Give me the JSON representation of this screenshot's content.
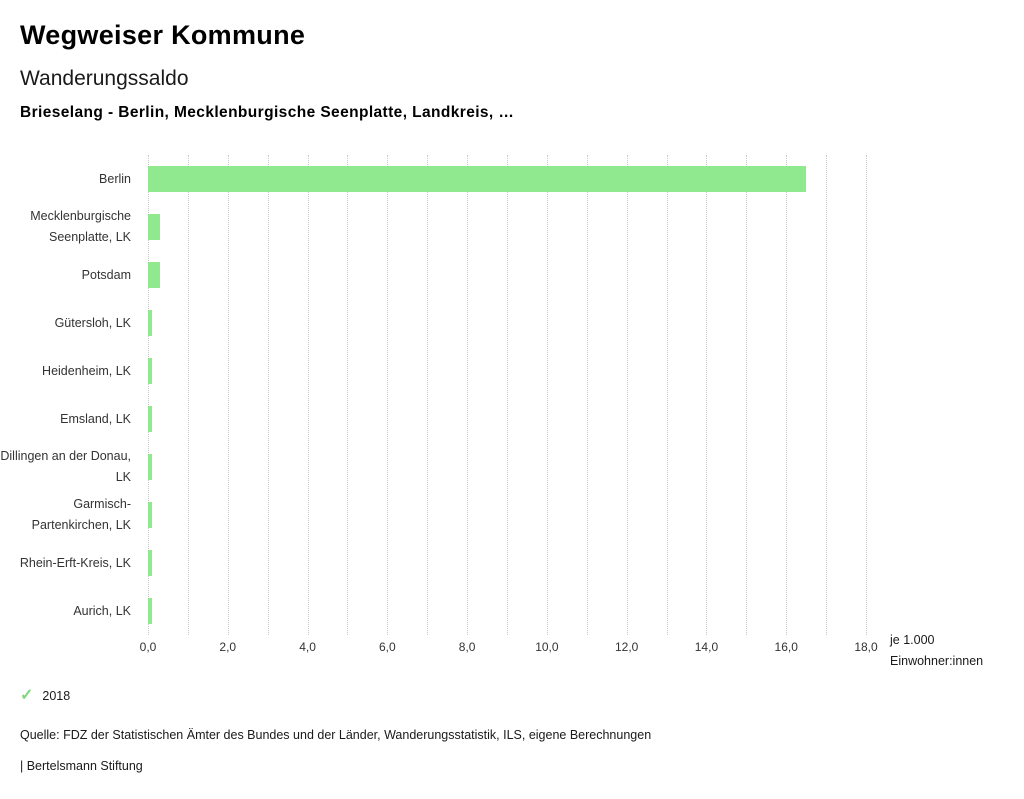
{
  "header": {
    "title": "Wegweiser Kommune",
    "subtitle": "Wanderungssaldo",
    "filter_line": "Brieselang - Berlin, Mecklenburgische Seenplatte, Landkreis, …"
  },
  "chart_data": {
    "type": "bar",
    "orientation": "horizontal",
    "title": "Wanderungssaldo",
    "categories": [
      "Berlin",
      "Mecklenburgische Seenplatte, LK",
      "Potsdam",
      "Gütersloh, LK",
      "Heidenheim, LK",
      "Emsland, LK",
      "Dillingen an der Donau, LK",
      "Garmisch-Partenkirchen, LK",
      "Rhein-Erft-Kreis, LK",
      "Aurich, LK"
    ],
    "values": [
      16.5,
      0.3,
      0.3,
      0.1,
      0.1,
      0.1,
      0.1,
      0.1,
      0.1,
      0.1
    ],
    "series_name": "2018",
    "xlim": [
      0,
      18
    ],
    "grid_interval": 1,
    "x_ticks": [
      0,
      2,
      4,
      6,
      8,
      10,
      12,
      14,
      16,
      18
    ],
    "x_tick_labels": [
      "0,0",
      "2,0",
      "4,0",
      "6,0",
      "8,0",
      "10,0",
      "12,0",
      "14,0",
      "16,0",
      "18,0"
    ],
    "xlabel_line1": "je 1.000",
    "xlabel_line2": "Einwohner:innen",
    "bar_color": "#90e88f",
    "grid": "dotted-vertical",
    "legend_position": "bottom-left"
  },
  "legend": {
    "check_icon": "✓",
    "check_color": "#7ed87d",
    "year": "2018"
  },
  "footer": {
    "source": "Quelle: FDZ der Statistischen Ämter des Bundes und der Länder, Wanderungsstatistik, ILS, eigene Berechnungen",
    "brand": "| Bertelsmann Stiftung"
  }
}
